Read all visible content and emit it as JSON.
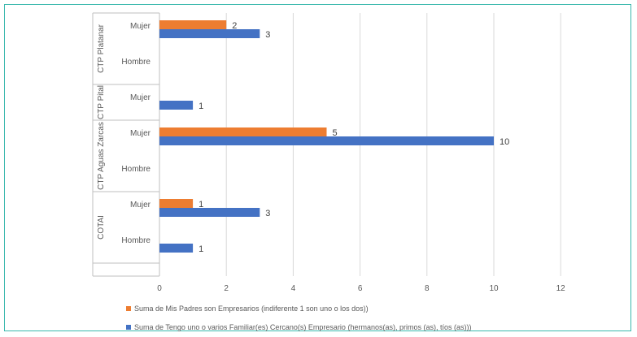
{
  "chart_data": {
    "type": "bar",
    "orientation": "horizontal",
    "grid": true,
    "legend_position": "bottom",
    "xlim": [
      0,
      12
    ],
    "x_ticks": [
      "0",
      "2",
      "4",
      "6",
      "8",
      "10",
      "12"
    ],
    "groups": [
      {
        "name": "CTP Platanar",
        "rows": [
          "Mujer",
          "Hombre"
        ]
      },
      {
        "name": "CTP Pital",
        "rows": [
          "Mujer"
        ]
      },
      {
        "name": "CTP Aguas Zarcas",
        "rows": [
          "Mujer",
          "Hombre"
        ]
      },
      {
        "name": "COTAI",
        "rows": [
          "Mujer",
          "Hombre"
        ]
      }
    ],
    "categories": [
      "CTP Platanar - Mujer",
      "CTP Platanar - Hombre",
      "CTP Pital - Mujer",
      "CTP Aguas Zarcas - Mujer",
      "CTP Aguas Zarcas - Hombre",
      "COTAI - Mujer",
      "COTAI - Hombre"
    ],
    "series": [
      {
        "name": "Suma de Mis Padres son  Empresarios (indiferente 1 son uno o los dos))",
        "color": "#ed7d31",
        "values": [
          2,
          null,
          null,
          5,
          null,
          1,
          null
        ]
      },
      {
        "name": "Suma de Tengo uno o varios  Familiar(es) Cercano(s) Empresario (hermanos(as), primos (as), tíos (as)))",
        "color": "#4472c4",
        "values": [
          3,
          null,
          1,
          10,
          null,
          3,
          1
        ]
      }
    ]
  }
}
